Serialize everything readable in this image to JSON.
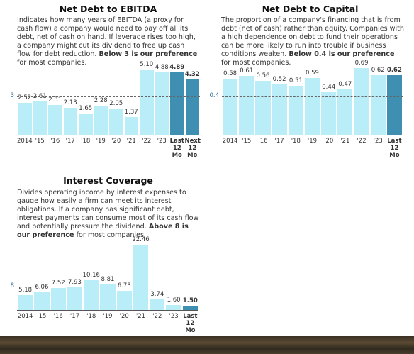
{
  "chart_data": [
    {
      "type": "bar",
      "title": "Net Debt to EBITDA",
      "description": [
        {
          "text": "Indicates how many years of EBITDA (a proxy for cash flow) a company would need to pay off all its debt, net of cash on hand. If leverage rises too high, a company might cut its dividend to free up cash flow for debt reduction. ",
          "bold": false
        },
        {
          "text": "Below 3 is our preference",
          "bold": true
        },
        {
          "text": " for most companies.",
          "bold": false
        }
      ],
      "categories": [
        "2014",
        "'15",
        "'16",
        "'17",
        "'18",
        "'19",
        "'20",
        "'21",
        "'22",
        "'23",
        "Last 12 Mo",
        "Next 12 Mo"
      ],
      "values": [
        2.52,
        2.61,
        2.31,
        2.13,
        1.65,
        2.28,
        2.05,
        1.37,
        5.1,
        4.88,
        4.89,
        4.32
      ],
      "value_labels": [
        "2.52",
        "2.61",
        "2.31",
        "2.13",
        "1.65",
        "2.28",
        "2.05",
        "1.37",
        "5.10",
        "4.88",
        "4.89",
        "4.32"
      ],
      "highlight": [
        false,
        false,
        false,
        false,
        false,
        false,
        false,
        false,
        false,
        false,
        true,
        true
      ],
      "color": "#b9eef8",
      "highlight_color": "#3f8fb2",
      "ylim": [
        0,
        5.6
      ],
      "yticks": [
        3
      ]
    },
    {
      "type": "bar",
      "title": "Net Debt to Capital",
      "description": [
        {
          "text": "The proportion of a company's financing that is from debt (net of cash) rather than equity. Companies with a high dependence on debt to fund their operations can be more likely to run into trouble if business conditions weaken. ",
          "bold": false
        },
        {
          "text": "Below 0.4 is our preference",
          "bold": true
        },
        {
          "text": " for most companies.",
          "bold": false
        }
      ],
      "categories": [
        "2014",
        "'15",
        "'16",
        "'17",
        "'18",
        "'19",
        "'20",
        "'21",
        "'22",
        "'23",
        "Last 12 Mo"
      ],
      "values": [
        0.58,
        0.61,
        0.56,
        0.52,
        0.51,
        0.59,
        0.44,
        0.47,
        0.69,
        0.62,
        0.62
      ],
      "value_labels": [
        "0.58",
        "0.61",
        "0.56",
        "0.52",
        "0.51",
        "0.59",
        "0.44",
        "0.47",
        "0.69",
        "0.62",
        "0.62"
      ],
      "highlight": [
        false,
        false,
        false,
        false,
        false,
        false,
        false,
        false,
        false,
        false,
        true
      ],
      "color": "#b9eef8",
      "highlight_color": "#3f8fb2",
      "ylim": [
        0,
        0.72
      ],
      "yticks": [
        0.4
      ]
    },
    {
      "type": "bar",
      "title": "Interest Coverage",
      "description": [
        {
          "text": "Divides operating income by interest expenses to gauge how easily a firm can meet its interest obligations. If a company has significant debt, interest payments can consume most of its cash flow and potentially pressure the dividend. ",
          "bold": false
        },
        {
          "text": "Above 8 is our preference",
          "bold": true
        },
        {
          "text": " for most companies.",
          "bold": false
        }
      ],
      "categories": [
        "2014",
        "'15",
        "'16",
        "'17",
        "'18",
        "'19",
        "'20",
        "'21",
        "'22",
        "'23",
        "Last 12 Mo"
      ],
      "values": [
        5.18,
        6.06,
        7.52,
        7.93,
        10.16,
        8.81,
        6.73,
        22.46,
        3.74,
        1.6,
        1.5
      ],
      "value_labels": [
        "5.18",
        "6.06",
        "7.52",
        "7.93",
        "10.16",
        "8.81",
        "6.73",
        "22.46",
        "3.74",
        "1.60",
        "1.50"
      ],
      "highlight": [
        false,
        false,
        false,
        false,
        false,
        false,
        false,
        false,
        false,
        false,
        true
      ],
      "color": "#b9eef8",
      "highlight_color": "#3f8fb2",
      "ylim": [
        0,
        23.5
      ],
      "yticks": [
        8
      ]
    }
  ]
}
